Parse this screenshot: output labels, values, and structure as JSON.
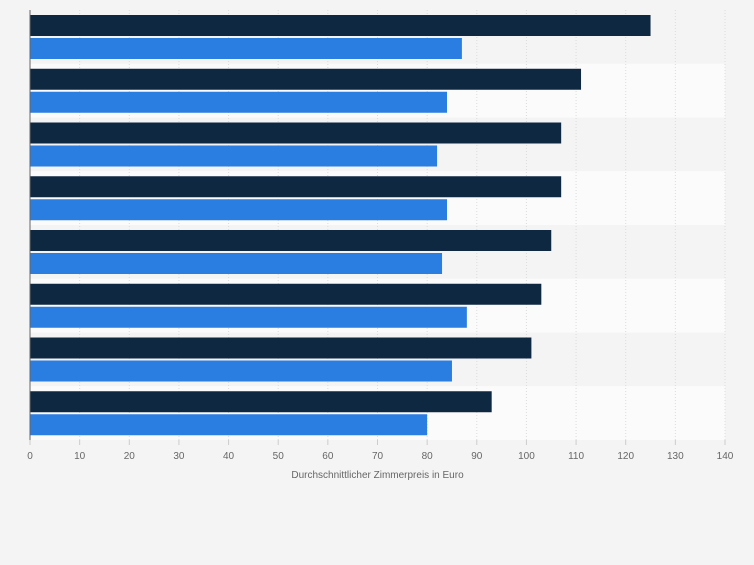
{
  "chart_data": {
    "type": "bar",
    "orientation": "horizontal",
    "categories": [
      "",
      "",
      "",
      "",
      "",
      "",
      "",
      ""
    ],
    "series": [
      {
        "color": "#0f2842",
        "values": [
          125,
          111,
          107,
          107,
          105,
          103,
          101,
          93
        ]
      },
      {
        "color": "#2a7de1",
        "values": [
          87,
          84,
          82,
          84,
          83,
          88,
          85,
          80
        ]
      }
    ],
    "xlabel": "Durchschnittlicher Zimmerpreis in Euro",
    "ylabel": "",
    "xlim": [
      0,
      140
    ],
    "xticks": [
      0,
      10,
      20,
      30,
      40,
      50,
      60,
      70,
      80,
      90,
      100,
      110,
      120,
      130,
      140
    ],
    "grid": true,
    "legend": "none"
  }
}
